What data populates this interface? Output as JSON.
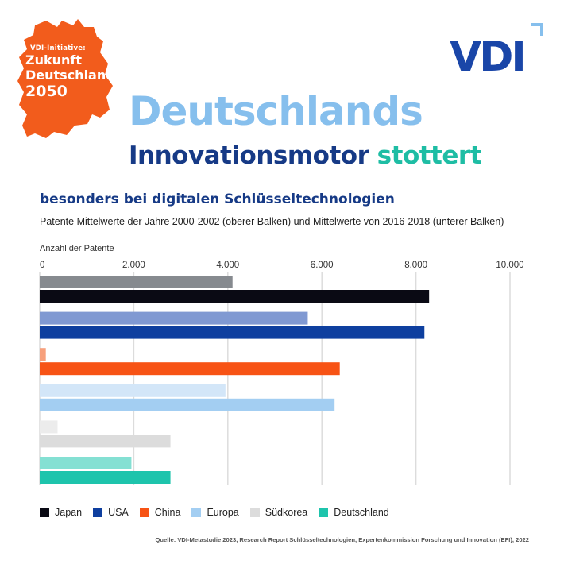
{
  "badge": {
    "line1": "VDI-Initiative:",
    "line2": "Zukunft",
    "line3": "Deutschland",
    "line4": "2050",
    "color": "#f25c1c"
  },
  "logo": {
    "text": "VDI",
    "color": "#1a46a8",
    "accent": "#86bfed"
  },
  "headline": {
    "line1": "Deutschlands",
    "line2a": "Innovationsmotor",
    "line2b": "stottert"
  },
  "subtitle": "besonders bei digitalen Schlüsseltechnologien",
  "caption": "Patente Mittelwerte der Jahre 2000-2002 (oberer Balken) und Mittelwerte von 2016-2018 (unterer Balken)",
  "source": "Quelle: VDI-Metastudie 2023, Research Report Schlüsseltechnologien, Expertenkommission Forschung und Innovation (EFI), 2022",
  "chart_data": {
    "type": "bar",
    "orientation": "horizontal",
    "xlabel": "Anzahl der Patente",
    "xlim": [
      0,
      10000
    ],
    "ticks": [
      0,
      2000,
      4000,
      6000,
      8000,
      10000
    ],
    "tick_labels": [
      "0",
      "2.000",
      "4.000",
      "6.000",
      "8.000",
      "10.000"
    ],
    "grid": true,
    "legend_position": "bottom",
    "categories": [
      "Japan",
      "USA",
      "China",
      "Europa",
      "Südkorea",
      "Deutschland"
    ],
    "series": [
      {
        "name": "2000-2002",
        "values": [
          4100,
          5700,
          130,
          3950,
          380,
          1950
        ],
        "colors": [
          "#868a8f",
          "#8099d2",
          "#f7a07c",
          "#d3e6f8",
          "#ececec",
          "#84e0d3"
        ]
      },
      {
        "name": "2016-2018",
        "values": [
          8280,
          8180,
          6380,
          6270,
          2780,
          2780
        ],
        "colors": [
          "#0a0a14",
          "#0e3f9f",
          "#f75315",
          "#a3cef2",
          "#dcdcdc",
          "#1ec4ac"
        ]
      }
    ],
    "legend": [
      {
        "label": "Japan",
        "color": "#0a0a14"
      },
      {
        "label": "USA",
        "color": "#0e3f9f"
      },
      {
        "label": "China",
        "color": "#f75315"
      },
      {
        "label": "Europa",
        "color": "#a3cef2"
      },
      {
        "label": "Südkorea",
        "color": "#dcdcdc"
      },
      {
        "label": "Deutschland",
        "color": "#1ec4ac"
      }
    ]
  }
}
